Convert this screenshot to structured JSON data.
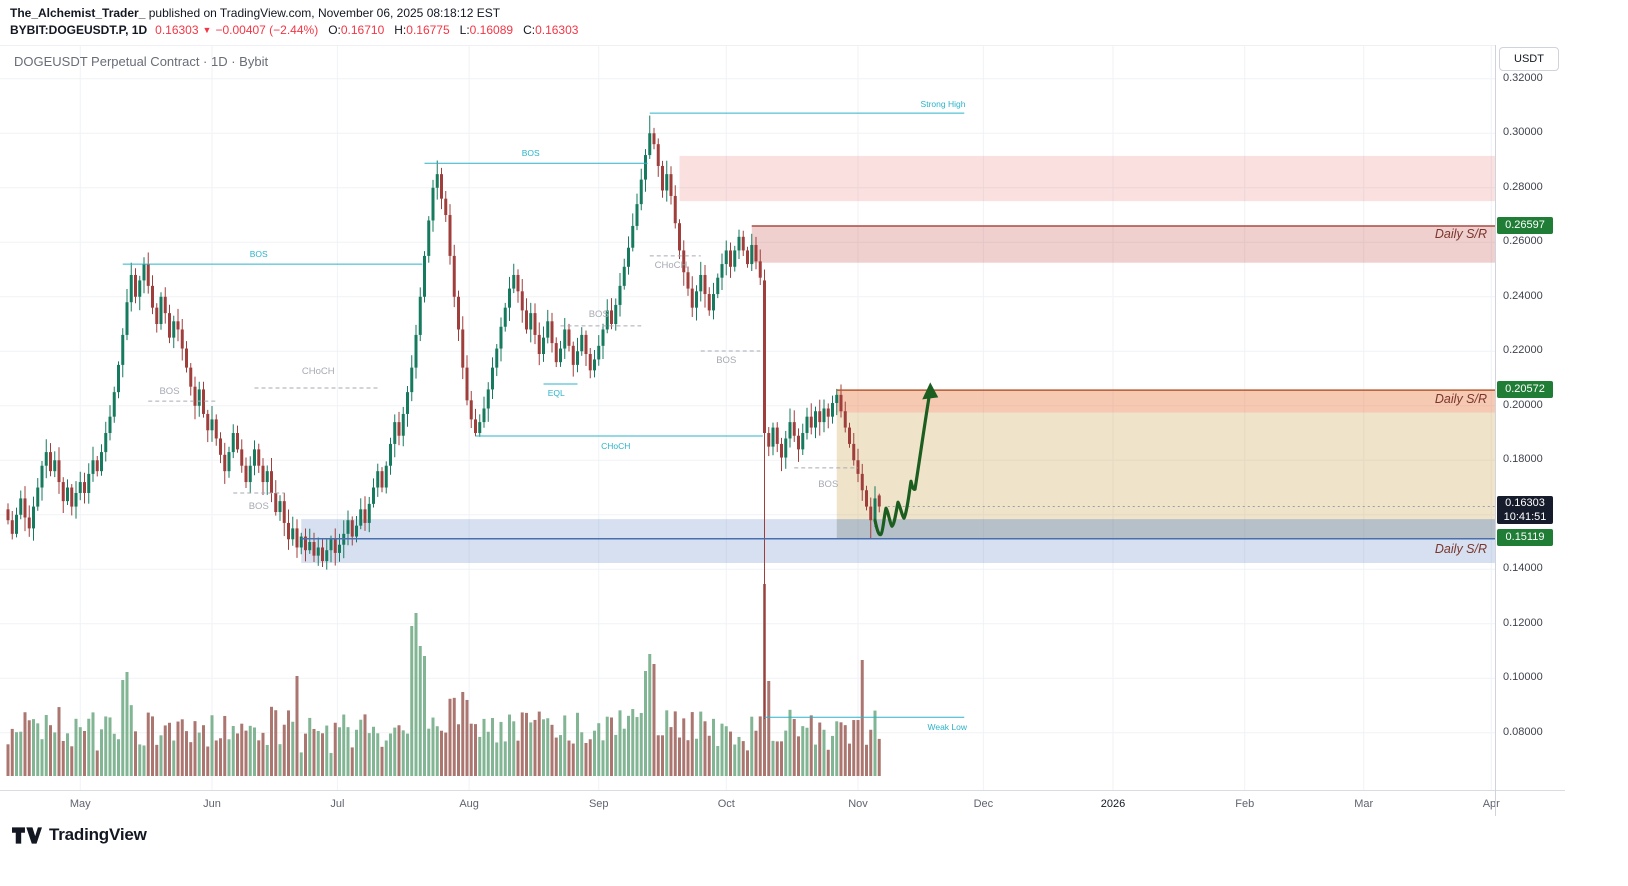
{
  "header": {
    "author": "The_Alchemist_Trader_",
    "published": " published on TradingView.com, November 06, 2025 08:18:12 EST",
    "symbol": "BYBIT:DOGEUSDT.P, 1D",
    "last_price": "0.16303",
    "direction_arrow": "▼",
    "change": "−0.00407 (−2.44%)",
    "ohlc": [
      {
        "label": "O:",
        "value": "0.16710"
      },
      {
        "label": "H:",
        "value": "0.16775"
      },
      {
        "label": "L:",
        "value": "0.16089"
      },
      {
        "label": "C:",
        "value": "0.16303"
      }
    ]
  },
  "chart": {
    "watermark": "DOGEUSDT Perpetual Contract · 1D · Bybit"
  },
  "price_axis": {
    "currency_button": "USDT",
    "tags": [
      {
        "text": "0.26597",
        "p": 0.26597,
        "type": "green"
      },
      {
        "text": "0.20572",
        "p": 0.20572,
        "type": "green"
      },
      {
        "text": "0.16303",
        "p": 0.16303,
        "type": "dark",
        "sub": "10:41:51"
      },
      {
        "text": "0.15119",
        "p": 0.15119,
        "type": "green"
      }
    ]
  },
  "time_axis": {
    "months": [
      {
        "label": "May",
        "i": 17
      },
      {
        "label": "Jun",
        "i": 48
      },
      {
        "label": "Jul",
        "i": 77.5
      },
      {
        "label": "Aug",
        "i": 108.5
      },
      {
        "label": "Sep",
        "i": 139
      },
      {
        "label": "Oct",
        "i": 169
      },
      {
        "label": "Nov",
        "i": 200
      },
      {
        "label": "Dec",
        "i": 229.5
      },
      {
        "label": "2026",
        "i": 260,
        "year": true
      },
      {
        "label": "Feb",
        "i": 291
      },
      {
        "label": "Mar",
        "i": 319
      },
      {
        "label": "Apr",
        "i": 349
      }
    ]
  },
  "footer": {
    "logo_text": "TradingView"
  },
  "chart_data": {
    "type": "candlestick",
    "title": "DOGEUSDT Perpetual Contract · 1D · Bybit",
    "symbol": "DOGEUSDT.P",
    "exchange": "Bybit",
    "interval": "1D",
    "quote_currency": "USDT",
    "y_axis": {
      "tick_min": 0.08,
      "tick_max": 0.32,
      "tick_step": 0.02,
      "format_decimals": 5
    },
    "current": {
      "price": 0.16303,
      "countdown": "10:41:51"
    },
    "closes": [
      0.158,
      0.153,
      0.16,
      0.166,
      0.159,
      0.155,
      0.163,
      0.17,
      0.178,
      0.183,
      0.176,
      0.18,
      0.172,
      0.165,
      0.17,
      0.163,
      0.168,
      0.172,
      0.168,
      0.175,
      0.18,
      0.176,
      0.183,
      0.19,
      0.196,
      0.205,
      0.215,
      0.226,
      0.238,
      0.248,
      0.24,
      0.246,
      0.252,
      0.244,
      0.236,
      0.23,
      0.24,
      0.234,
      0.225,
      0.231,
      0.228,
      0.221,
      0.214,
      0.207,
      0.2,
      0.206,
      0.197,
      0.191,
      0.195,
      0.188,
      0.182,
      0.176,
      0.183,
      0.19,
      0.184,
      0.178,
      0.172,
      0.178,
      0.184,
      0.178,
      0.172,
      0.176,
      0.168,
      0.161,
      0.165,
      0.157,
      0.151,
      0.155,
      0.148,
      0.152,
      0.147,
      0.15,
      0.145,
      0.148,
      0.143,
      0.147,
      0.151,
      0.146,
      0.149,
      0.153,
      0.158,
      0.152,
      0.156,
      0.162,
      0.157,
      0.164,
      0.17,
      0.176,
      0.17,
      0.178,
      0.186,
      0.194,
      0.189,
      0.197,
      0.205,
      0.214,
      0.226,
      0.24,
      0.255,
      0.268,
      0.28,
      0.285,
      0.276,
      0.27,
      0.255,
      0.24,
      0.228,
      0.214,
      0.202,
      0.195,
      0.19,
      0.194,
      0.199,
      0.206,
      0.214,
      0.221,
      0.229,
      0.236,
      0.243,
      0.248,
      0.242,
      0.235,
      0.228,
      0.234,
      0.226,
      0.219,
      0.225,
      0.231,
      0.223,
      0.216,
      0.221,
      0.228,
      0.222,
      0.215,
      0.22,
      0.226,
      0.219,
      0.213,
      0.217,
      0.222,
      0.228,
      0.235,
      0.23,
      0.237,
      0.244,
      0.251,
      0.258,
      0.266,
      0.274,
      0.283,
      0.292,
      0.3,
      0.296,
      0.288,
      0.279,
      0.285,
      0.277,
      0.267,
      0.257,
      0.249,
      0.243,
      0.236,
      0.242,
      0.248,
      0.241,
      0.235,
      0.241,
      0.247,
      0.252,
      0.257,
      0.251,
      0.257,
      0.262,
      0.257,
      0.252,
      0.259,
      0.253,
      0.247,
      0.19,
      0.185,
      0.192,
      0.186,
      0.181,
      0.188,
      0.194,
      0.189,
      0.184,
      0.19,
      0.196,
      0.192,
      0.198,
      0.194,
      0.199,
      0.196,
      0.201,
      0.204,
      0.198,
      0.192,
      0.186,
      0.18,
      0.175,
      0.169,
      0.163,
      0.158,
      0.166,
      0.163
    ],
    "overrides": {
      "32": {
        "h": 0.2545
      },
      "101": {
        "h": 0.29
      },
      "151": {
        "h": 0.3065
      },
      "152": {
        "h": 0.302
      },
      "178": {
        "o": 0.246,
        "h": 0.25,
        "l": 0.085,
        "c": 0.19
      },
      "195": {
        "h": 0.2062
      },
      "203": {
        "l": 0.151
      },
      "205": {
        "o": 0.1671,
        "h": 0.16775,
        "l": 0.16089,
        "c": 0.16303
      }
    },
    "volume_overrides": {
      "27": 96,
      "28": 104,
      "68": 100,
      "95": 150,
      "96": 163,
      "97": 130,
      "98": 120,
      "150": 105,
      "151": 122,
      "152": 112,
      "178": 192,
      "179": 95,
      "201": 116
    },
    "zones": [
      {
        "id": "support-blue",
        "p1": 0.1584,
        "p2": 0.1423,
        "i0": 69,
        "fill": "rgba(98,137,199,0.26)",
        "border_line": {
          "price": 0.15119,
          "color": "#4a6fae"
        }
      },
      {
        "id": "supply-upper",
        "p1": 0.2917,
        "p2": 0.2751,
        "i0": 158,
        "fill": "rgba(228,104,98,0.20)"
      },
      {
        "id": "daily-sr-upper",
        "p1": 0.26597,
        "p2": 0.2525,
        "i0": 175,
        "fill": "rgba(198,86,80,0.28)",
        "border_top": "#a94b44"
      },
      {
        "id": "daily-sr-mid",
        "p1": 0.20572,
        "p2": 0.1975,
        "i0": 195,
        "fill": "rgba(233,126,74,0.42)",
        "border_top": "#b35a31"
      },
      {
        "id": "demand-tan",
        "p1": 0.1975,
        "p2": 0.1584,
        "i0": 195,
        "fill": "rgba(209,174,96,0.34)"
      },
      {
        "id": "gray-band",
        "p1": 0.1584,
        "p2": 0.1512,
        "i0": 195,
        "fill": "rgba(110,118,110,0.30)"
      }
    ],
    "lines": [
      {
        "id": "bos-may",
        "text": "BOS",
        "price": 0.252,
        "i0": 27,
        "i1": 97.5,
        "style": "solid",
        "color": "cyan",
        "label_i": 59,
        "label_dy": -7
      },
      {
        "id": "bos-jul",
        "text": "BOS",
        "price": 0.289,
        "i0": 98,
        "i1": 150.5,
        "style": "solid",
        "color": "cyan",
        "label_i": 123,
        "label_dy": -7
      },
      {
        "id": "strong-high",
        "text": "Strong High",
        "price": 0.3074,
        "i0": 151,
        "i1": 225,
        "style": "solid",
        "color": "cyan",
        "label_i": 220,
        "label_dy": -6
      },
      {
        "id": "choch-aug",
        "text": "CHoCH",
        "price": 0.1889,
        "i0": 110,
        "i1": 177.6,
        "style": "solid",
        "color": "cyan",
        "label_i": 143,
        "label_dy": 13
      },
      {
        "id": "eql",
        "text": "EQL",
        "price": 0.208,
        "i0": 126,
        "i1": 134,
        "style": "solid",
        "color": "cyan",
        "label_i": 129,
        "label_dy": 12
      },
      {
        "id": "weak-low",
        "text": "Weak Low",
        "price": 0.0857,
        "i0": 178,
        "i1": 225,
        "style": "solid",
        "color": "cyan",
        "label_i": 221,
        "label_dy": 13
      },
      {
        "id": "bos-gray-1",
        "text": "BOS",
        "price": 0.2017,
        "i0": 33,
        "i1": 49,
        "style": "dashed",
        "color": "gray",
        "label_i": 38,
        "label_dy": -7
      },
      {
        "id": "choch-gray-1",
        "text": "CHoCH",
        "price": 0.2065,
        "i0": 58,
        "i1": 87,
        "style": "dashed",
        "color": "gray",
        "label_i": 73,
        "label_dy": -14
      },
      {
        "id": "bos-gray-2",
        "text": "BOS",
        "price": 0.168,
        "i0": 53,
        "i1": 65,
        "style": "dashed",
        "color": "gray",
        "label_i": 59,
        "label_dy": 16
      },
      {
        "id": "bos-gray-3",
        "text": "BOS",
        "price": 0.2293,
        "i0": 130,
        "i1": 149,
        "style": "dashed",
        "color": "gray",
        "label_i": 139,
        "label_dy": -9
      },
      {
        "id": "choch-gray-2",
        "text": "CHoCH",
        "price": 0.255,
        "i0": 151,
        "i1": 163,
        "style": "dashed",
        "color": "gray",
        "label_i": 156,
        "label_dy": 12
      },
      {
        "id": "bos-gray-4",
        "text": "BOS",
        "price": 0.2201,
        "i0": 163,
        "i1": 177,
        "style": "dashed",
        "color": "gray",
        "label_i": 169,
        "label_dy": 12
      },
      {
        "id": "bos-gray-5",
        "text": "BOS",
        "price": 0.1772,
        "i0": 185,
        "i1": 200,
        "style": "dashed",
        "color": "gray",
        "label_i": 193,
        "label_dy": 19
      }
    ],
    "sr_labels": [
      {
        "text": "Daily S/R",
        "price": 0.263
      },
      {
        "text": "Daily S/R",
        "price": 0.2025
      },
      {
        "text": "Daily S/R",
        "price": 0.1474
      }
    ],
    "projection_arrow": {
      "i_start": 204,
      "p_start": 0.158,
      "i_end": 217,
      "p_end": 0.206,
      "color": "#1b5e20"
    }
  }
}
